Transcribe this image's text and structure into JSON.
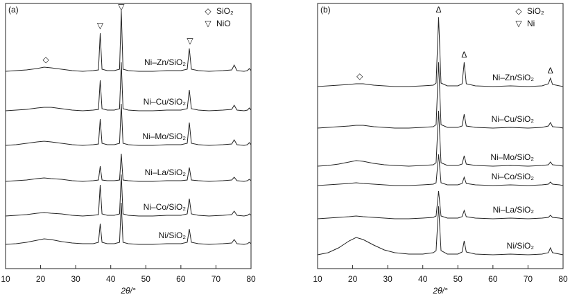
{
  "chart_data": [
    {
      "type": "line",
      "title": "(a)",
      "xlabel": "2θ/°",
      "xlim": [
        10,
        80
      ],
      "xticks": [
        10,
        20,
        30,
        40,
        50,
        60,
        70,
        80
      ],
      "legend": [
        {
          "symbol": "◇",
          "label": "SiO₂"
        },
        {
          "symbol": "▽",
          "label": "NiO"
        }
      ],
      "annotations": [
        {
          "text": "◇",
          "x": 21.5
        },
        {
          "text": "▽",
          "x": 37
        },
        {
          "text": "▽",
          "x": 43
        },
        {
          "text": "▽",
          "x": 62.6
        }
      ],
      "x": [
        10,
        13,
        16,
        19,
        21,
        23,
        26,
        29,
        32,
        35,
        36.5,
        37,
        37.5,
        39,
        41,
        42.5,
        43,
        43.5,
        45,
        48,
        52,
        56,
        60,
        61.8,
        62.4,
        63,
        65,
        68,
        72,
        74.5,
        75.2,
        76,
        78,
        79,
        79.5,
        80
      ],
      "series": [
        {
          "name": "Ni–Zn/SiO₂",
          "color": "#222",
          "values": [
            0,
            1,
            2,
            4,
            6,
            5,
            3,
            1,
            0,
            1,
            2,
            55,
            3,
            1,
            1,
            3,
            88,
            3,
            1,
            0,
            0,
            1,
            1,
            3,
            33,
            3,
            1,
            0,
            1,
            2,
            9,
            1,
            0,
            1,
            4,
            1
          ]
        },
        {
          "name": "Ni–Cu/SiO₂",
          "color": "#222",
          "values": [
            0,
            1,
            2,
            4,
            5,
            5,
            3,
            1,
            0,
            1,
            2,
            44,
            3,
            1,
            1,
            3,
            70,
            3,
            1,
            0,
            0,
            1,
            1,
            3,
            30,
            3,
            1,
            0,
            1,
            2,
            8,
            1,
            0,
            1,
            4,
            1
          ]
        },
        {
          "name": "Ni–Mo/SiO₂",
          "color": "#222",
          "values": [
            0,
            1,
            3,
            5,
            6,
            5,
            3,
            1,
            0,
            1,
            2,
            38,
            3,
            1,
            1,
            3,
            60,
            3,
            1,
            0,
            0,
            1,
            1,
            3,
            33,
            3,
            1,
            0,
            1,
            2,
            8,
            1,
            0,
            1,
            4,
            1
          ]
        },
        {
          "name": "Ni–La/SiO₂",
          "color": "#222",
          "values": [
            0,
            1,
            2,
            4,
            5,
            4,
            3,
            1,
            0,
            1,
            2,
            22,
            2,
            1,
            1,
            2,
            40,
            2,
            1,
            0,
            0,
            1,
            1,
            2,
            20,
            2,
            1,
            0,
            1,
            2,
            6,
            1,
            0,
            1,
            3,
            1
          ]
        },
        {
          "name": "Ni–Co/SiO₂",
          "color": "#222",
          "values": [
            0,
            1,
            2,
            4,
            5,
            4,
            3,
            1,
            0,
            1,
            2,
            45,
            3,
            1,
            1,
            3,
            60,
            3,
            1,
            0,
            0,
            1,
            1,
            3,
            25,
            3,
            1,
            0,
            1,
            2,
            7,
            1,
            0,
            1,
            3,
            1
          ]
        },
        {
          "name": "Ni/SiO₂",
          "color": "#222",
          "values": [
            0,
            1,
            3,
            6,
            8,
            7,
            4,
            2,
            1,
            1,
            3,
            30,
            3,
            1,
            1,
            3,
            60,
            3,
            1,
            0,
            0,
            1,
            1,
            3,
            22,
            3,
            1,
            0,
            1,
            2,
            7,
            1,
            0,
            1,
            3,
            1
          ]
        }
      ]
    },
    {
      "type": "line",
      "title": "(b)",
      "xlabel": "2θ/°",
      "xlim": [
        10,
        80
      ],
      "xticks": [
        10,
        20,
        30,
        40,
        50,
        60,
        70,
        80
      ],
      "legend": [
        {
          "symbol": "◇",
          "label": "SiO₂"
        },
        {
          "symbol": "▽",
          "label": "Ni"
        }
      ],
      "annotations": [
        {
          "text": "◇",
          "x": 22
        },
        {
          "text": "Δ",
          "x": 44.5
        },
        {
          "text": "Δ",
          "x": 51.8
        },
        {
          "text": "Δ",
          "x": 76.4
        }
      ],
      "x": [
        10,
        13,
        16,
        19,
        21,
        23,
        26,
        29,
        32,
        36,
        40,
        43,
        43.8,
        44.5,
        45.2,
        47,
        50,
        51.2,
        51.8,
        52.4,
        55,
        60,
        65,
        70,
        74,
        75.8,
        76.4,
        77,
        79,
        80
      ],
      "series": [
        {
          "name": "Ni–Zn/SiO₂",
          "color": "#222",
          "values": [
            0,
            1,
            2,
            3,
            4,
            4,
            2,
            1,
            0,
            0,
            1,
            2,
            5,
            100,
            5,
            1,
            1,
            4,
            35,
            4,
            1,
            0,
            1,
            0,
            1,
            4,
            12,
            3,
            1,
            0
          ]
        },
        {
          "name": "Ni–Cu/SiO₂",
          "color": "#222",
          "values": [
            0,
            1,
            2,
            3,
            4,
            4,
            2,
            1,
            0,
            0,
            1,
            2,
            5,
            95,
            5,
            1,
            1,
            3,
            20,
            3,
            1,
            0,
            1,
            0,
            1,
            3,
            8,
            2,
            1,
            0
          ]
        },
        {
          "name": "Ni–Mo/SiO₂",
          "color": "#222",
          "values": [
            0,
            1,
            3,
            6,
            8,
            7,
            4,
            2,
            1,
            0,
            1,
            2,
            5,
            80,
            5,
            1,
            1,
            3,
            15,
            3,
            1,
            0,
            1,
            0,
            1,
            2,
            6,
            2,
            1,
            0
          ]
        },
        {
          "name": "Ni–Co/SiO₂",
          "color": "#222",
          "values": [
            0,
            1,
            2,
            3,
            4,
            3,
            2,
            1,
            0,
            0,
            1,
            2,
            4,
            45,
            4,
            1,
            1,
            3,
            12,
            3,
            1,
            0,
            1,
            0,
            1,
            2,
            5,
            2,
            1,
            0
          ]
        },
        {
          "name": "Ni–La/SiO₂",
          "color": "#222",
          "values": [
            0,
            1,
            2,
            3,
            4,
            3,
            2,
            1,
            0,
            0,
            1,
            2,
            4,
            40,
            4,
            1,
            1,
            3,
            12,
            3,
            1,
            0,
            1,
            0,
            1,
            2,
            5,
            2,
            1,
            0
          ]
        },
        {
          "name": "Ni/SiO₂",
          "color": "#222",
          "values": [
            0,
            3,
            10,
            20,
            25,
            22,
            14,
            7,
            3,
            1,
            1,
            3,
            6,
            70,
            6,
            1,
            1,
            4,
            20,
            4,
            1,
            0,
            1,
            0,
            1,
            3,
            10,
            3,
            1,
            0
          ]
        }
      ]
    }
  ]
}
